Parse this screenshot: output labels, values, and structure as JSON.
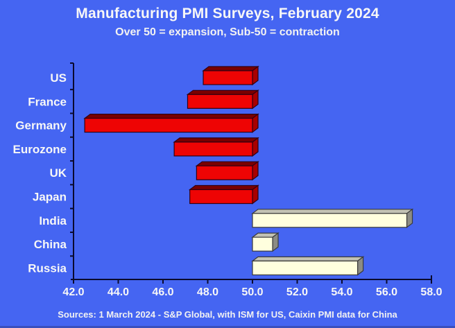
{
  "header": {
    "title": "Manufacturing PMI Surveys, February 2024",
    "subtitle": "Over 50 = expansion, Sub-50 = contraction"
  },
  "footer": {
    "source": "Sources: 1 March 2024 - S&P Global, with ISM for US, Caixin PMI data for China"
  },
  "chart_data": {
    "type": "bar",
    "orientation": "horizontal",
    "style": "3d-beveled-bars",
    "title": "Manufacturing PMI Surveys, February 2024",
    "subtitle": "Over 50 = expansion, Sub-50 = contraction",
    "baseline": 50,
    "categories": [
      "US",
      "France",
      "Germany",
      "Eurozone",
      "UK",
      "Japan",
      "India",
      "China",
      "Russia"
    ],
    "values": [
      47.8,
      47.1,
      42.5,
      46.5,
      47.5,
      47.2,
      56.9,
      50.9,
      54.7
    ],
    "xlim": [
      42.0,
      58.0
    ],
    "x_ticks": [
      "42.0",
      "44.0",
      "46.0",
      "48.0",
      "50.0",
      "52.0",
      "54.0",
      "56.0",
      "58.0"
    ],
    "x_tick_values": [
      42,
      44,
      46,
      48,
      50,
      52,
      54,
      56,
      58
    ],
    "grid": false,
    "legend": false,
    "colors": {
      "background": "#4565F2",
      "contraction_front": "#EE0404",
      "contraction_top": "#7A0000",
      "contraction_side": "#A80000",
      "contraction_outline": "#330011",
      "expansion_front": "#FFFFDE",
      "expansion_top": "#C2C2B4",
      "expansion_side": "#8C8C84",
      "expansion_outline": "#3A3A3A",
      "axis": "#0A0A2E",
      "text": "#F7F7F7"
    }
  }
}
